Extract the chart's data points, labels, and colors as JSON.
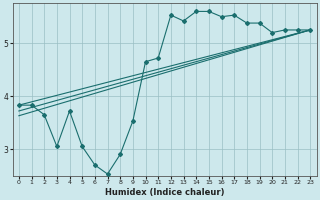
{
  "xlabel": "Humidex (Indice chaleur)",
  "background_color": "#cde8ec",
  "grid_color": "#9abfc4",
  "line_color": "#1a6e6e",
  "xlim": [
    -0.5,
    23.5
  ],
  "ylim": [
    2.5,
    5.75
  ],
  "yticks": [
    3,
    4,
    5
  ],
  "xticks": [
    0,
    1,
    2,
    3,
    4,
    5,
    6,
    7,
    8,
    9,
    10,
    11,
    12,
    13,
    14,
    15,
    16,
    17,
    18,
    19,
    20,
    21,
    22,
    23
  ],
  "data_x": [
    0,
    1,
    2,
    3,
    4,
    5,
    6,
    7,
    8,
    9,
    10,
    11,
    12,
    13,
    14,
    15,
    16,
    17,
    18,
    19,
    20,
    21,
    22,
    23
  ],
  "data_y": [
    3.83,
    3.83,
    3.65,
    3.05,
    3.72,
    3.05,
    2.7,
    2.53,
    2.9,
    3.53,
    4.65,
    4.72,
    5.53,
    5.42,
    5.6,
    5.6,
    5.5,
    5.53,
    5.38,
    5.38,
    5.2,
    5.25,
    5.25,
    5.25
  ],
  "line1_x": [
    0,
    23
  ],
  "line1_y": [
    3.83,
    5.25
  ],
  "line2_x": [
    0,
    23
  ],
  "line2_y": [
    3.72,
    5.25
  ],
  "line3_x": [
    0,
    23
  ],
  "line3_y": [
    3.63,
    5.25
  ]
}
